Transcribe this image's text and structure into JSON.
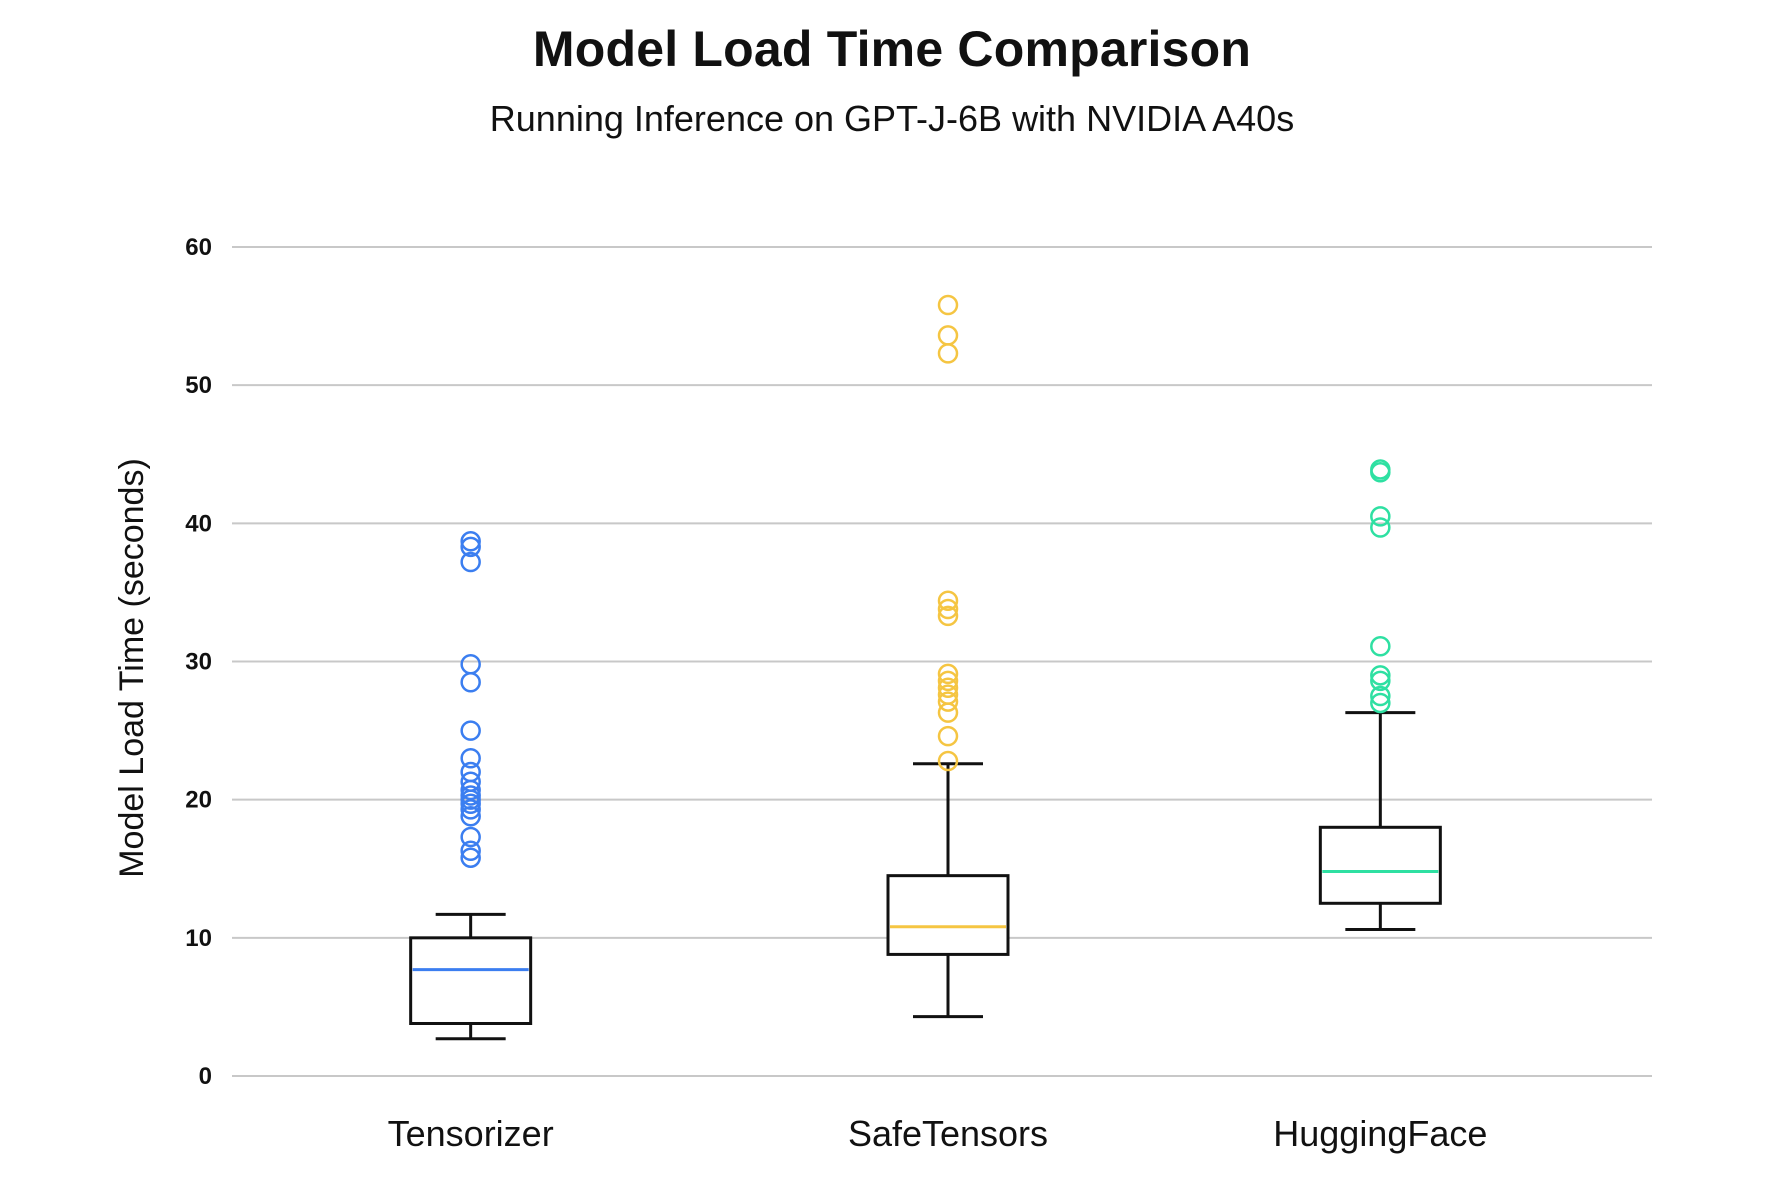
{
  "chart_data": {
    "type": "box",
    "title": "Model Load Time Comparison",
    "subtitle": "Running Inference on GPT-J-6B with NVIDIA A40s",
    "xlabel": "",
    "ylabel": "Model Load Time (seconds)",
    "ylim": [
      0,
      60
    ],
    "yticks": [
      0,
      10,
      20,
      30,
      40,
      50,
      60
    ],
    "grid": true,
    "categories": [
      "Tensorizer",
      "SafeTensors",
      "HuggingFace"
    ],
    "series": [
      {
        "name": "Tensorizer",
        "color": "#3b7ef0",
        "whisker_low": 2.7,
        "q1": 3.8,
        "median": 7.7,
        "q3": 10.0,
        "whisker_high": 11.7,
        "outliers": [
          15.8,
          16.3,
          17.3,
          18.8,
          19.3,
          19.7,
          20.0,
          20.3,
          20.7,
          21.3,
          22.0,
          23.0,
          25.0,
          28.5,
          29.8,
          37.2,
          38.3,
          38.7
        ]
      },
      {
        "name": "SafeTensors",
        "color": "#f5c542",
        "whisker_low": 4.3,
        "q1": 8.8,
        "median": 10.8,
        "q3": 14.5,
        "whisker_high": 22.6,
        "outliers": [
          22.8,
          24.6,
          26.3,
          27.1,
          27.6,
          28.1,
          28.6,
          29.1,
          33.3,
          33.8,
          34.4,
          52.3,
          53.6,
          55.8
        ]
      },
      {
        "name": "HuggingFace",
        "color": "#2ee0a2",
        "whisker_low": 10.6,
        "q1": 12.5,
        "median": 14.8,
        "q3": 18.0,
        "whisker_high": 26.3,
        "outliers": [
          27.0,
          27.5,
          28.6,
          29.0,
          31.1,
          39.7,
          40.5,
          43.7,
          43.9
        ]
      }
    ]
  }
}
